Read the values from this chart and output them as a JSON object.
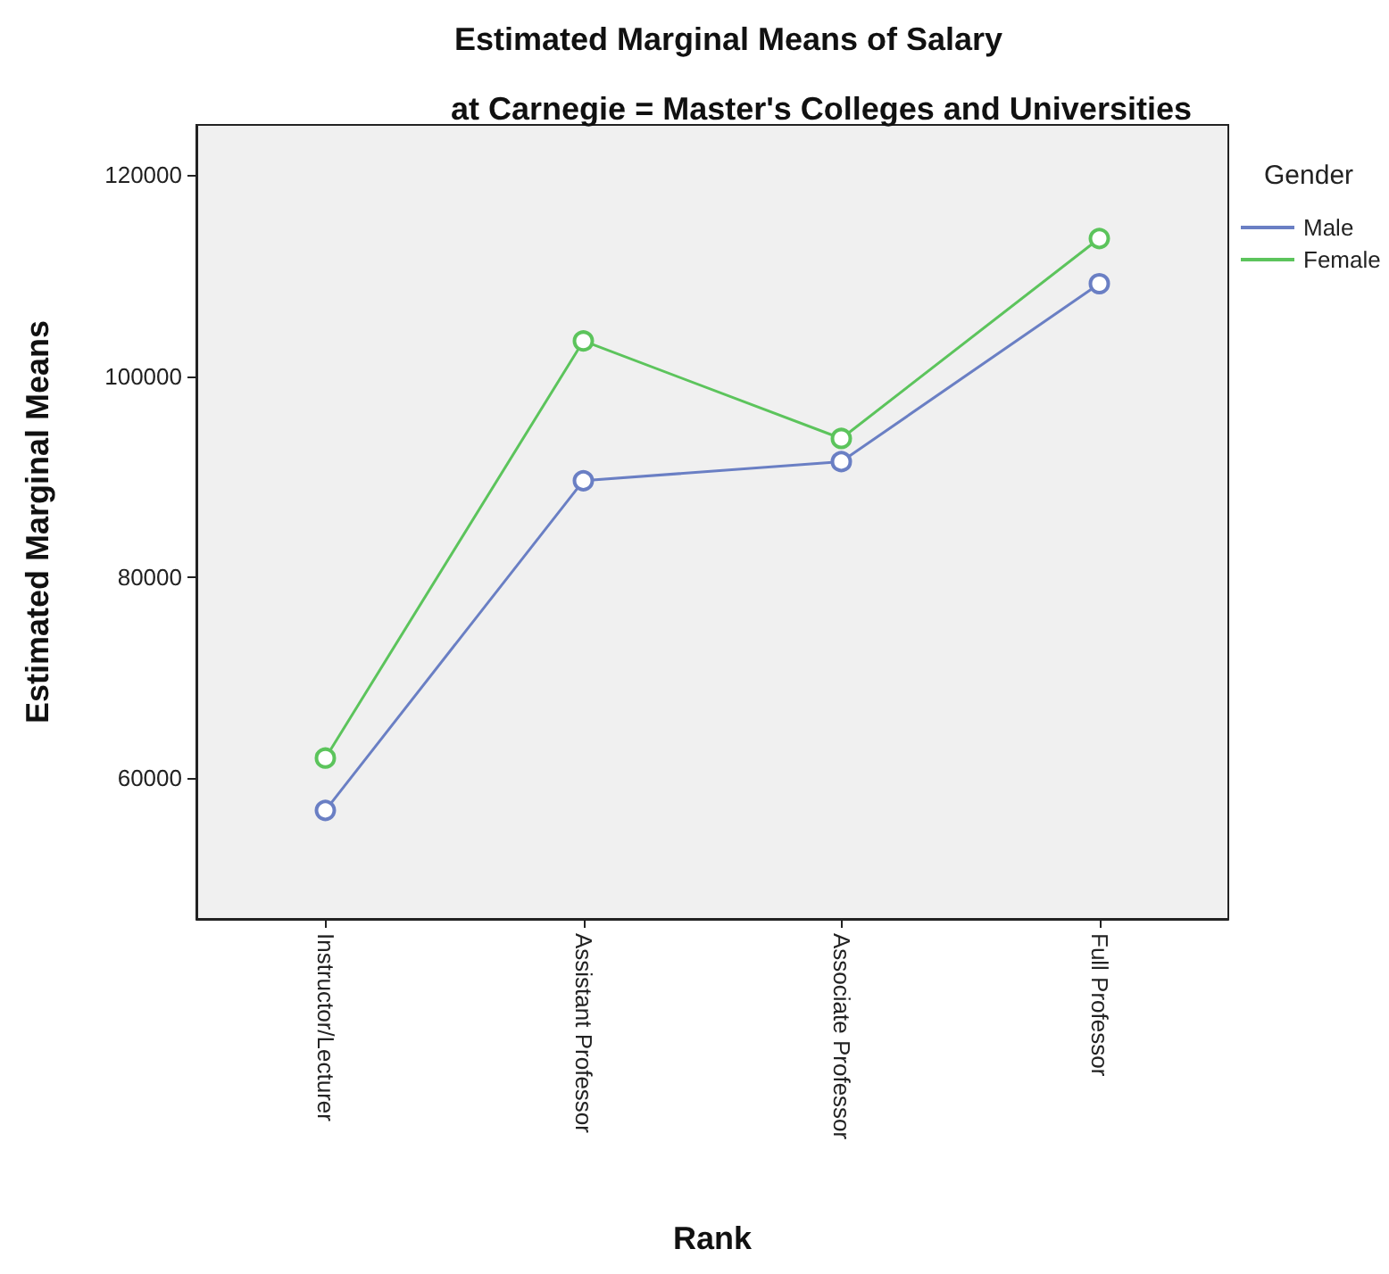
{
  "chart_data": {
    "type": "line",
    "title": "Estimated Marginal Means of Salary",
    "subtitle": "at Carnegie = Master's Colleges and Universities",
    "xlabel": "Rank",
    "ylabel": "Estimated Marginal Means",
    "legend_title": "Gender",
    "categories": [
      "Instructor/Lecturer",
      "Assistant Professor",
      "Associate Professor",
      "Full Professor"
    ],
    "series": [
      {
        "name": "Male",
        "color": "#6a7fc4",
        "values": [
          56800,
          89600,
          91500,
          109200
        ]
      },
      {
        "name": "Female",
        "color": "#5cc45c",
        "values": [
          62000,
          103500,
          93800,
          113700
        ]
      }
    ],
    "ylim": [
      46000,
      125000
    ],
    "yticks": [
      60000,
      80000,
      100000,
      120000
    ],
    "grid": false,
    "legend": "top right",
    "marker": "circle",
    "line_style": "solid"
  }
}
